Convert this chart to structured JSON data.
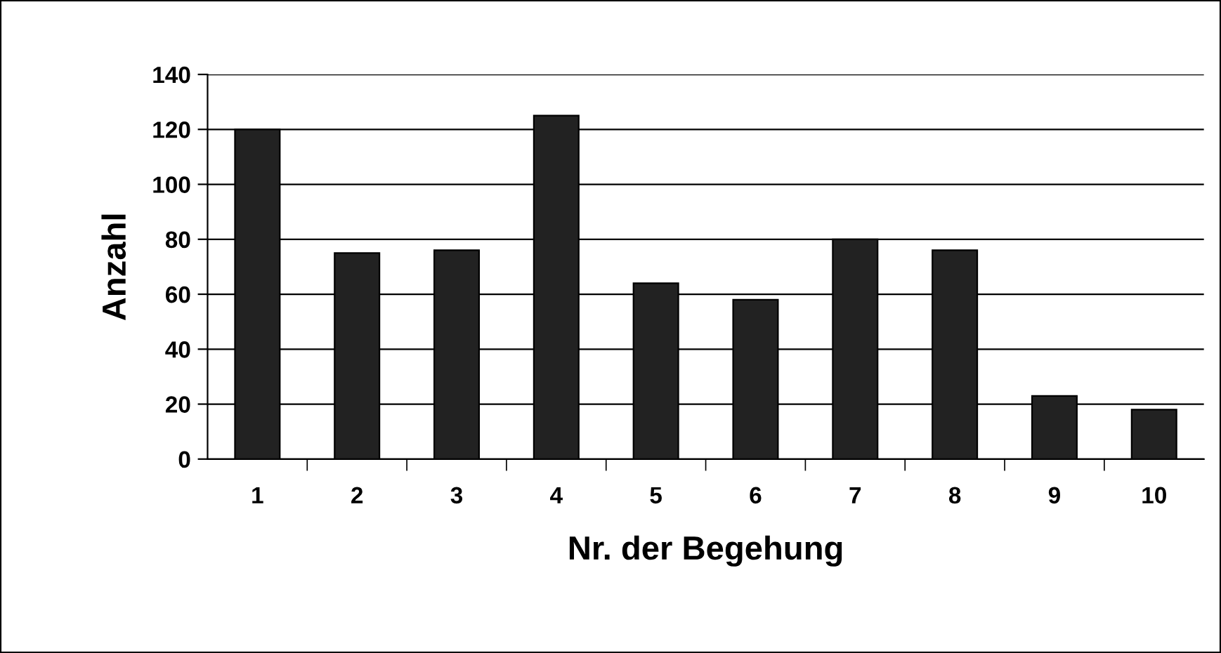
{
  "chart_data": {
    "type": "bar",
    "xlabel": "Nr. der Begehung",
    "ylabel": "Anzahl",
    "categories": [
      "1",
      "2",
      "3",
      "4",
      "5",
      "6",
      "7",
      "8",
      "9",
      "10"
    ],
    "values": [
      120,
      75,
      76,
      125,
      64,
      58,
      80,
      76,
      23,
      18
    ],
    "color": "#222222",
    "ylim": [
      0,
      140
    ],
    "yticks": [
      0,
      20,
      40,
      60,
      80,
      100,
      120,
      140
    ],
    "grid": "y",
    "legend": false
  }
}
